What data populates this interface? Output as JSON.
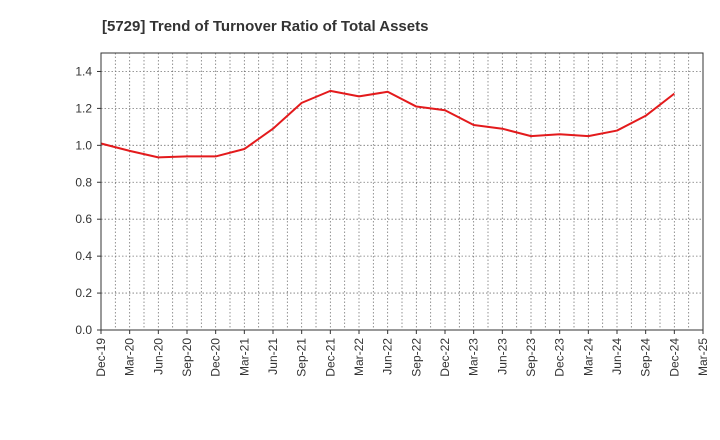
{
  "chart_data": {
    "type": "line",
    "title": "[5729]  Trend of Turnover Ratio of Total Assets",
    "xlabel": "",
    "ylabel": "",
    "categories": [
      "Dec-19",
      "Mar-20",
      "Jun-20",
      "Sep-20",
      "Dec-20",
      "Mar-21",
      "Jun-21",
      "Sep-21",
      "Dec-21",
      "Mar-22",
      "Jun-22",
      "Sep-22",
      "Dec-22",
      "Mar-23",
      "Jun-23",
      "Sep-23",
      "Dec-23",
      "Mar-24",
      "Jun-24",
      "Sep-24",
      "Dec-24",
      "Mar-25"
    ],
    "series": [
      {
        "name": "",
        "color": "#e31a1c",
        "values": [
          1.01,
          0.97,
          0.935,
          0.94,
          0.94,
          0.98,
          1.09,
          1.23,
          1.295,
          1.265,
          1.29,
          1.21,
          1.19,
          1.11,
          1.09,
          1.05,
          1.06,
          1.05,
          1.08,
          1.16,
          1.28,
          null
        ]
      }
    ],
    "ylim": [
      0,
      1.5
    ],
    "yticks": [
      "0.0",
      "0.2",
      "0.4",
      "0.6",
      "0.8",
      "1.0",
      "1.2",
      "1.4"
    ],
    "ytick_values": [
      0,
      0.2,
      0.4,
      0.6,
      0.8,
      1.0,
      1.2,
      1.4
    ],
    "grid": true,
    "grid_style": "dotted",
    "legend": "none"
  }
}
